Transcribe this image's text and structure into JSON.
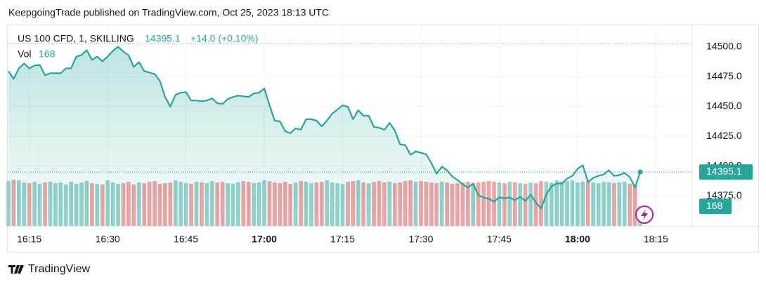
{
  "header": "KeepgoingTrade published on TradingView.com, Oct 25, 2023 18:13 UTC",
  "footer": "TradingView",
  "chart_data": {
    "type": "line",
    "change": "+14.0 (+0.10%)",
    "x": [
      "16:11",
      "16:12",
      "16:13",
      "16:14",
      "16:15",
      "16:16",
      "16:17",
      "16:18",
      "16:19",
      "16:20",
      "16:21",
      "16:22",
      "16:23",
      "16:24",
      "16:25",
      "16:26",
      "16:27",
      "16:28",
      "16:29",
      "16:30",
      "16:31",
      "16:32",
      "16:33",
      "16:34",
      "16:35",
      "16:36",
      "16:37",
      "16:38",
      "16:39",
      "16:40",
      "16:41",
      "16:42",
      "16:43",
      "16:44",
      "16:45",
      "16:46",
      "16:47",
      "16:48",
      "16:49",
      "16:50",
      "16:51",
      "16:52",
      "16:53",
      "16:54",
      "16:55",
      "16:56",
      "16:57",
      "16:58",
      "16:59",
      "17:00",
      "17:01",
      "17:02",
      "17:03",
      "17:04",
      "17:05",
      "17:06",
      "17:07",
      "17:08",
      "17:09",
      "17:10",
      "17:11",
      "17:12",
      "17:13",
      "17:14",
      "17:15",
      "17:16",
      "17:17",
      "17:18",
      "17:19",
      "17:20",
      "17:21",
      "17:22",
      "17:23",
      "17:24",
      "17:25",
      "17:26",
      "17:27",
      "17:28",
      "17:29",
      "17:30",
      "17:31",
      "17:32",
      "17:33",
      "17:34",
      "17:35",
      "17:36",
      "17:37",
      "17:38",
      "17:39",
      "17:40",
      "17:41",
      "17:42",
      "17:43",
      "17:44",
      "17:45",
      "17:46",
      "17:47",
      "17:48",
      "17:49",
      "17:50",
      "17:51",
      "17:52",
      "17:53",
      "17:54",
      "17:55",
      "17:56",
      "17:57",
      "17:58",
      "17:59",
      "18:00",
      "18:01",
      "18:02",
      "18:03",
      "18:04",
      "18:05",
      "18:06",
      "18:07",
      "18:08",
      "18:09",
      "18:10",
      "18:11",
      "18:12"
    ],
    "series": [
      {
        "name": "US 100 CFD, 1, SKILLING",
        "color": "#26a69a",
        "values": [
          14479.6,
          14473.1,
          14481.9,
          14486.0,
          14481.9,
          14484.2,
          14484.8,
          14476.1,
          14477.8,
          14477.8,
          14477.8,
          14481.9,
          14481.9,
          14491.8,
          14493.0,
          14497.1,
          14488.9,
          14491.8,
          14487.7,
          14491.8,
          14496.5,
          14500.0,
          14495.9,
          14493.0,
          14483.1,
          14487.2,
          14479.6,
          14478.4,
          14477.2,
          14471.4,
          14457.9,
          14449.8,
          14459.7,
          14461.5,
          14462.0,
          14455.0,
          14455.0,
          14454.4,
          14455.0,
          14456.8,
          14452.7,
          14452.1,
          14456.2,
          14457.9,
          14459.1,
          14458.5,
          14457.9,
          14460.9,
          14461.5,
          14465.0,
          14450.9,
          14438.1,
          14437.5,
          14429.3,
          14427.6,
          14431.7,
          14430.5,
          14439.3,
          14439.3,
          14438.1,
          14433.4,
          14438.1,
          14443.9,
          14447.4,
          14450.9,
          14449.8,
          14439.3,
          14446.8,
          14442.2,
          14442.2,
          14432.8,
          14432.2,
          14430.5,
          14436.3,
          14429.9,
          14418.2,
          14417.6,
          14409.5,
          14412.4,
          14411.2,
          14410.0,
          14402.5,
          14393.7,
          14399.5,
          14396.6,
          14391.4,
          14388.4,
          14384.9,
          14382.0,
          14385.5,
          14375.6,
          14373.8,
          14372.7,
          14370.3,
          14373.8,
          14373.2,
          14373.8,
          14371.5,
          14374.4,
          14370.9,
          14376.2,
          14369.7,
          14364.5,
          14376.2,
          14383.2,
          14385.5,
          14385.5,
          14389.6,
          14391.9,
          14397.8,
          14400.7,
          14386.7,
          14390.2,
          14391.9,
          14393.1,
          14396.6,
          14391.9,
          14392.5,
          14394.3,
          14390.8,
          14382.0,
          14395.1
        ]
      },
      {
        "name": "Vol",
        "axis": "y2",
        "up_color": "#92d3cc",
        "down_color": "#f2a3a3",
        "values": [
          384,
          396,
          390,
          372,
          366,
          378,
          360,
          372,
          378,
          366,
          372,
          354,
          378,
          360,
          372,
          384,
          366,
          360,
          354,
          390,
          372,
          360,
          366,
          378,
          354,
          372,
          366,
          378,
          384,
          360,
          366,
          372,
          390,
          378,
          366,
          360,
          378,
          372,
          366,
          384,
          372,
          378,
          366,
          360,
          372,
          384,
          378,
          366,
          372,
          390,
          384,
          372,
          366,
          378,
          360,
          372,
          384,
          378,
          366,
          372,
          378,
          390,
          372,
          366,
          360,
          378,
          384,
          390,
          372,
          366,
          378,
          384,
          372,
          378,
          366,
          372,
          384,
          390,
          378,
          384,
          378,
          372,
          366,
          378,
          372,
          360,
          366,
          372,
          378,
          366,
          372,
          378,
          384,
          378,
          372,
          366,
          378,
          372,
          366,
          360,
          372,
          366,
          384,
          378,
          372,
          390,
          378,
          384,
          390,
          372,
          378,
          384,
          372,
          366,
          378,
          372,
          366,
          372,
          378,
          360,
          348,
          168
        ]
      }
    ],
    "ylim": [
      14350,
      14518
    ],
    "yticks": [
      {
        "value": 14375,
        "label": "14375.0"
      },
      {
        "value": 14400,
        "label": "14400.0"
      },
      {
        "value": 14425,
        "label": "14425.0"
      },
      {
        "value": 14450,
        "label": "14450.0"
      },
      {
        "value": 14475,
        "label": "14475.0"
      },
      {
        "value": 14500,
        "label": "14500.0"
      }
    ],
    "y2lim": [
      0,
      1720
    ],
    "xticks": [
      "16:15",
      "16:30",
      "16:45",
      "17:00",
      "17:15",
      "17:30",
      "17:45",
      "18:00",
      "18:15"
    ],
    "grid": true
  }
}
